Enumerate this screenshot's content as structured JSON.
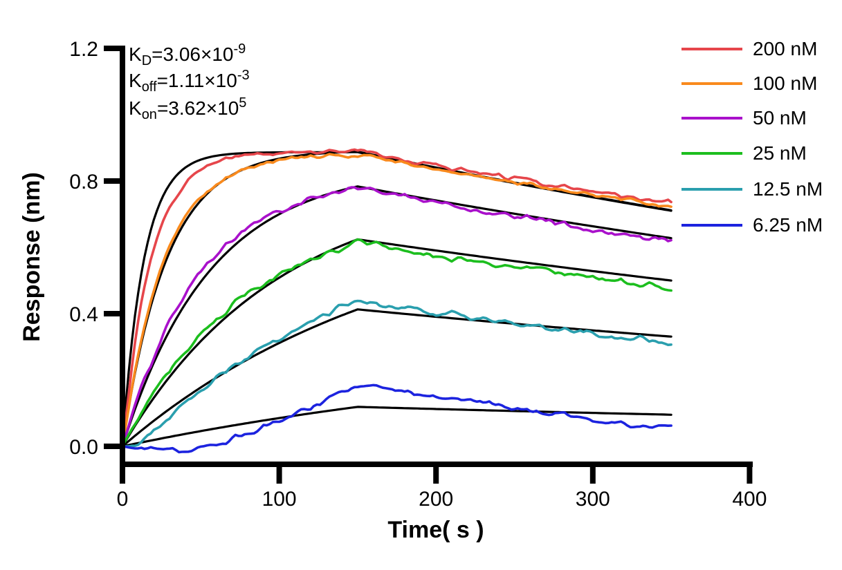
{
  "chart_data": {
    "type": "line",
    "title": "",
    "xlabel": "Time( s )",
    "ylabel": "Response (nm)",
    "grid": false,
    "background": "#ffffff",
    "legend_position": "right-outside",
    "x_axis": {
      "label": "Time( s )",
      "min": 0,
      "max": 400,
      "ticks": [
        0,
        100,
        200,
        300,
        400
      ]
    },
    "y_axis": {
      "label": "Response (nm)",
      "min": 0.0,
      "max": 1.2,
      "ticks": [
        "0.0",
        "0.4",
        "0.8",
        "1.2"
      ]
    },
    "association_end_s": 150,
    "trace_end_s": 350,
    "fit_color": "#000000",
    "fit_koff": 0.00111,
    "kinetics_annotations": [
      {
        "name": "kd",
        "base": "K",
        "sub": "D",
        "body": "=3.06×10",
        "exp": "-9"
      },
      {
        "name": "koff",
        "base": "K",
        "sub": "off",
        "body": "=1.11×10",
        "exp": "-3"
      },
      {
        "name": "kon",
        "base": "K",
        "sub": "on",
        "body": "=3.62×10",
        "exp": "5"
      }
    ],
    "series": [
      {
        "label": "200 nM",
        "concentration_nM": 200,
        "color": "#E6464B",
        "observed_keypoints": [
          [
            0,
            0
          ],
          [
            10,
            0.377
          ],
          [
            20,
            0.594
          ],
          [
            30,
            0.719
          ],
          [
            40,
            0.791
          ],
          [
            50,
            0.833
          ],
          [
            60,
            0.857
          ],
          [
            75,
            0.876
          ],
          [
            90,
            0.884
          ],
          [
            105,
            0.886
          ],
          [
            120,
            0.888
          ],
          [
            135,
            0.889
          ],
          [
            150,
            0.889
          ],
          [
            175,
            0.868
          ],
          [
            200,
            0.847
          ],
          [
            225,
            0.827
          ],
          [
            250,
            0.808
          ],
          [
            275,
            0.789
          ],
          [
            300,
            0.77
          ],
          [
            325,
            0.752
          ],
          [
            350,
            0.734
          ]
        ],
        "fit": {
          "Req": 0.887,
          "kobs": 0.0735
        }
      },
      {
        "label": "100 nM",
        "concentration_nM": 100,
        "color": "#F98A1D",
        "observed_keypoints": [
          [
            0,
            0
          ],
          [
            10,
            0.28
          ],
          [
            20,
            0.471
          ],
          [
            30,
            0.602
          ],
          [
            40,
            0.692
          ],
          [
            50,
            0.752
          ],
          [
            60,
            0.794
          ],
          [
            75,
            0.832
          ],
          [
            90,
            0.853
          ],
          [
            105,
            0.866
          ],
          [
            120,
            0.873
          ],
          [
            135,
            0.878
          ],
          [
            150,
            0.88
          ],
          [
            175,
            0.859
          ],
          [
            200,
            0.838
          ],
          [
            225,
            0.818
          ],
          [
            250,
            0.798
          ],
          [
            275,
            0.779
          ],
          [
            300,
            0.76
          ],
          [
            325,
            0.742
          ],
          [
            350,
            0.724
          ]
        ],
        "fit": {
          "Req": 0.893,
          "kobs": 0.0355
        }
      },
      {
        "label": "50 nM",
        "concentration_nM": 50,
        "color": "#A911CB",
        "observed_keypoints": [
          [
            0,
            0
          ],
          [
            10,
            0.151
          ],
          [
            20,
            0.274
          ],
          [
            30,
            0.374
          ],
          [
            40,
            0.456
          ],
          [
            50,
            0.523
          ],
          [
            60,
            0.577
          ],
          [
            75,
            0.64
          ],
          [
            90,
            0.686
          ],
          [
            105,
            0.72
          ],
          [
            120,
            0.745
          ],
          [
            135,
            0.764
          ],
          [
            150,
            0.777
          ],
          [
            175,
            0.755
          ],
          [
            200,
            0.734
          ],
          [
            225,
            0.713
          ],
          [
            250,
            0.693
          ],
          [
            275,
            0.673
          ],
          [
            300,
            0.654
          ],
          [
            325,
            0.636
          ],
          [
            350,
            0.618
          ]
        ],
        "fit": {
          "Req": 0.842,
          "kobs": 0.0178
        }
      },
      {
        "label": "25 nM",
        "concentration_nM": 25,
        "color": "#1CBE1E",
        "observed_keypoints": [
          [
            0,
            0
          ],
          [
            10,
            0.086
          ],
          [
            20,
            0.161
          ],
          [
            30,
            0.227
          ],
          [
            40,
            0.284
          ],
          [
            50,
            0.338
          ],
          [
            60,
            0.384
          ],
          [
            75,
            0.442
          ],
          [
            90,
            0.49
          ],
          [
            105,
            0.53
          ],
          [
            120,
            0.563
          ],
          [
            135,
            0.59
          ],
          [
            150,
            0.613
          ],
          [
            175,
            0.594
          ],
          [
            200,
            0.576
          ],
          [
            225,
            0.558
          ],
          [
            250,
            0.541
          ],
          [
            275,
            0.525
          ],
          [
            300,
            0.509
          ],
          [
            325,
            0.493
          ],
          [
            350,
            0.478
          ]
        ],
        "fit": {
          "Req": 0.8,
          "kobs": 0.0101
        }
      },
      {
        "label": "12.5 nM",
        "concentration_nM": 12.5,
        "color": "#2A9FAE",
        "observed_keypoints": [
          [
            0,
            0
          ],
          [
            10,
            0.004
          ],
          [
            20,
            0.047
          ],
          [
            30,
            0.092
          ],
          [
            40,
            0.133
          ],
          [
            50,
            0.171
          ],
          [
            60,
            0.207
          ],
          [
            75,
            0.257
          ],
          [
            90,
            0.301
          ],
          [
            105,
            0.341
          ],
          [
            120,
            0.378
          ],
          [
            135,
            0.41
          ],
          [
            150,
            0.44
          ],
          [
            175,
            0.421
          ],
          [
            200,
            0.403
          ],
          [
            225,
            0.386
          ],
          [
            250,
            0.369
          ],
          [
            275,
            0.353
          ],
          [
            300,
            0.338
          ],
          [
            325,
            0.324
          ],
          [
            350,
            0.31
          ]
        ],
        "fit": {
          "Req": 0.725,
          "kobs": 0.00562
        }
      },
      {
        "label": "6.25 nM",
        "concentration_nM": 6.25,
        "color": "#1C23DF",
        "observed_keypoints": [
          [
            0,
            0
          ],
          [
            15,
            -0.005
          ],
          [
            30,
            -0.008
          ],
          [
            45,
            -0.006
          ],
          [
            55,
            0.004
          ],
          [
            65,
            0.016
          ],
          [
            75,
            0.03
          ],
          [
            85,
            0.047
          ],
          [
            95,
            0.066
          ],
          [
            105,
            0.086
          ],
          [
            115,
            0.108
          ],
          [
            125,
            0.131
          ],
          [
            135,
            0.154
          ],
          [
            145,
            0.175
          ],
          [
            152,
            0.188
          ],
          [
            160,
            0.185
          ],
          [
            170,
            0.176
          ],
          [
            185,
            0.163
          ],
          [
            200,
            0.152
          ],
          [
            215,
            0.141
          ],
          [
            230,
            0.13
          ],
          [
            245,
            0.117
          ],
          [
            260,
            0.106
          ],
          [
            275,
            0.098
          ],
          [
            290,
            0.089
          ],
          [
            305,
            0.078
          ],
          [
            320,
            0.068
          ],
          [
            335,
            0.06
          ],
          [
            350,
            0.054
          ]
        ],
        "fit": {
          "Req": 0.32,
          "kobs": 0.0031
        }
      }
    ]
  }
}
